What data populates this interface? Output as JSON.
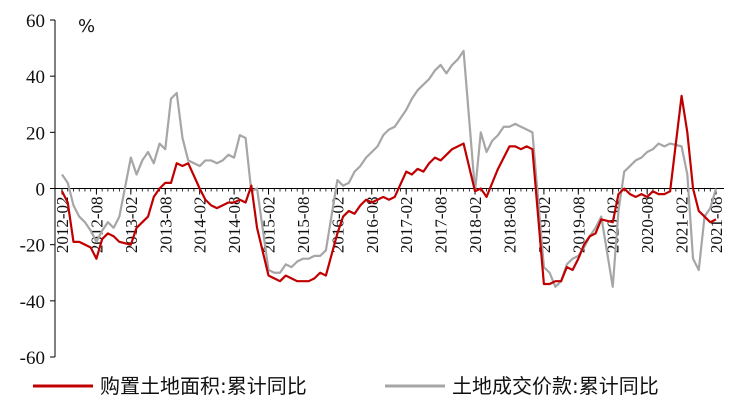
{
  "chart_data": {
    "type": "line",
    "unit_label": "%",
    "ylim": [
      -60,
      60
    ],
    "yticks": [
      -60,
      -40,
      -20,
      0,
      20,
      40,
      60
    ],
    "x_range": [
      "2012-02",
      "2021-08"
    ],
    "x_ticks": [
      "2012-02",
      "2012-08",
      "2013-02",
      "2013-08",
      "2014-02",
      "2014-08",
      "2015-02",
      "2015-08",
      "2016-02",
      "2016-08",
      "2017-02",
      "2017-08",
      "2018-02",
      "2018-08",
      "2019-02",
      "2019-08",
      "2020-02",
      "2020-08",
      "2021-02",
      "2021-08"
    ],
    "grid": false,
    "legend_position": "bottom",
    "series": [
      {
        "name": "购置土地面积:累计同比",
        "color": "#C00000",
        "points": [
          [
            "2012-02",
            -1
          ],
          [
            "2012-03",
            -5
          ],
          [
            "2012-04",
            -19
          ],
          [
            "2012-05",
            -19
          ],
          [
            "2012-06",
            -20
          ],
          [
            "2012-07",
            -21
          ],
          [
            "2012-08",
            -25
          ],
          [
            "2012-09",
            -18
          ],
          [
            "2012-10",
            -16
          ],
          [
            "2012-11",
            -17
          ],
          [
            "2012-12",
            -19
          ],
          [
            "2013-02",
            -20
          ],
          [
            "2013-03",
            -14
          ],
          [
            "2013-04",
            -12
          ],
          [
            "2013-05",
            -10
          ],
          [
            "2013-06",
            -3
          ],
          [
            "2013-07",
            0
          ],
          [
            "2013-08",
            2
          ],
          [
            "2013-09",
            2
          ],
          [
            "2013-10",
            9
          ],
          [
            "2013-11",
            8
          ],
          [
            "2013-12",
            9
          ],
          [
            "2014-02",
            0
          ],
          [
            "2014-03",
            -4
          ],
          [
            "2014-04",
            -6
          ],
          [
            "2014-05",
            -7
          ],
          [
            "2014-06",
            -6
          ],
          [
            "2014-07",
            -5
          ],
          [
            "2014-08",
            -5
          ],
          [
            "2014-09",
            -4
          ],
          [
            "2014-10",
            -5
          ],
          [
            "2014-11",
            1
          ],
          [
            "2014-12",
            -14
          ],
          [
            "2015-02",
            -31
          ],
          [
            "2015-03",
            -32
          ],
          [
            "2015-04",
            -33
          ],
          [
            "2015-05",
            -31
          ],
          [
            "2015-06",
            -32
          ],
          [
            "2015-07",
            -33
          ],
          [
            "2015-08",
            -33
          ],
          [
            "2015-09",
            -33
          ],
          [
            "2015-10",
            -32
          ],
          [
            "2015-11",
            -30
          ],
          [
            "2015-12",
            -31
          ],
          [
            "2016-02",
            -16
          ],
          [
            "2016-03",
            -10
          ],
          [
            "2016-04",
            -8
          ],
          [
            "2016-05",
            -9
          ],
          [
            "2016-06",
            -6
          ],
          [
            "2016-07",
            -4
          ],
          [
            "2016-08",
            -5
          ],
          [
            "2016-09",
            -4
          ],
          [
            "2016-10",
            -3
          ],
          [
            "2016-11",
            -4
          ],
          [
            "2016-12",
            -3
          ],
          [
            "2017-02",
            6
          ],
          [
            "2017-03",
            5
          ],
          [
            "2017-04",
            7
          ],
          [
            "2017-05",
            6
          ],
          [
            "2017-06",
            9
          ],
          [
            "2017-07",
            11
          ],
          [
            "2017-08",
            10
          ],
          [
            "2017-09",
            12
          ],
          [
            "2017-10",
            14
          ],
          [
            "2017-11",
            15
          ],
          [
            "2017-12",
            16
          ],
          [
            "2018-02",
            -1
          ],
          [
            "2018-03",
            0
          ],
          [
            "2018-04",
            -3
          ],
          [
            "2018-05",
            2
          ],
          [
            "2018-06",
            7
          ],
          [
            "2018-07",
            11
          ],
          [
            "2018-08",
            15
          ],
          [
            "2018-09",
            15
          ],
          [
            "2018-10",
            14
          ],
          [
            "2018-11",
            15
          ],
          [
            "2018-12",
            14
          ],
          [
            "2019-02",
            -34
          ],
          [
            "2019-03",
            -34
          ],
          [
            "2019-04",
            -33
          ],
          [
            "2019-05",
            -33
          ],
          [
            "2019-06",
            -28
          ],
          [
            "2019-07",
            -29
          ],
          [
            "2019-08",
            -25
          ],
          [
            "2019-09",
            -20
          ],
          [
            "2019-10",
            -17
          ],
          [
            "2019-11",
            -16
          ],
          [
            "2019-12",
            -11
          ],
          [
            "2020-02",
            -12
          ],
          [
            "2020-03",
            -2
          ],
          [
            "2020-04",
            0
          ],
          [
            "2020-05",
            -2
          ],
          [
            "2020-06",
            -3
          ],
          [
            "2020-07",
            -2
          ],
          [
            "2020-08",
            -3
          ],
          [
            "2020-09",
            -1
          ],
          [
            "2020-10",
            -2
          ],
          [
            "2020-11",
            -2
          ],
          [
            "2020-12",
            -1
          ],
          [
            "2021-02",
            33
          ],
          [
            "2021-03",
            20
          ],
          [
            "2021-04",
            0
          ],
          [
            "2021-05",
            -8
          ],
          [
            "2021-06",
            -10
          ],
          [
            "2021-07",
            -12
          ],
          [
            "2021-08",
            -11
          ]
        ]
      },
      {
        "name": "土地成交价款:累计同比",
        "color": "#A6A6A6",
        "points": [
          [
            "2012-02",
            5
          ],
          [
            "2012-03",
            2
          ],
          [
            "2012-04",
            -6
          ],
          [
            "2012-05",
            -10
          ],
          [
            "2012-06",
            -12
          ],
          [
            "2012-07",
            -15
          ],
          [
            "2012-08",
            -19
          ],
          [
            "2012-09",
            -15
          ],
          [
            "2012-10",
            -12
          ],
          [
            "2012-11",
            -14
          ],
          [
            "2012-12",
            -10
          ],
          [
            "2013-02",
            11
          ],
          [
            "2013-03",
            5
          ],
          [
            "2013-04",
            10
          ],
          [
            "2013-05",
            13
          ],
          [
            "2013-06",
            9
          ],
          [
            "2013-07",
            16
          ],
          [
            "2013-08",
            14
          ],
          [
            "2013-09",
            32
          ],
          [
            "2013-10",
            34
          ],
          [
            "2013-11",
            18
          ],
          [
            "2013-12",
            10
          ],
          [
            "2014-02",
            8
          ],
          [
            "2014-03",
            10
          ],
          [
            "2014-04",
            10
          ],
          [
            "2014-05",
            9
          ],
          [
            "2014-06",
            10
          ],
          [
            "2014-07",
            12
          ],
          [
            "2014-08",
            11
          ],
          [
            "2014-09",
            19
          ],
          [
            "2014-10",
            18
          ],
          [
            "2014-11",
            -1
          ],
          [
            "2014-12",
            0
          ],
          [
            "2015-02",
            -29
          ],
          [
            "2015-03",
            -30
          ],
          [
            "2015-04",
            -30
          ],
          [
            "2015-05",
            -27
          ],
          [
            "2015-06",
            -28
          ],
          [
            "2015-07",
            -26
          ],
          [
            "2015-08",
            -25
          ],
          [
            "2015-09",
            -25
          ],
          [
            "2015-10",
            -24
          ],
          [
            "2015-11",
            -24
          ],
          [
            "2015-12",
            -22
          ],
          [
            "2016-02",
            3
          ],
          [
            "2016-03",
            1
          ],
          [
            "2016-04",
            2
          ],
          [
            "2016-05",
            6
          ],
          [
            "2016-06",
            8
          ],
          [
            "2016-07",
            11
          ],
          [
            "2016-08",
            13
          ],
          [
            "2016-09",
            15
          ],
          [
            "2016-10",
            19
          ],
          [
            "2016-11",
            21
          ],
          [
            "2016-12",
            22
          ],
          [
            "2017-02",
            28
          ],
          [
            "2017-03",
            32
          ],
          [
            "2017-04",
            35
          ],
          [
            "2017-05",
            37
          ],
          [
            "2017-06",
            39
          ],
          [
            "2017-07",
            42
          ],
          [
            "2017-08",
            44
          ],
          [
            "2017-09",
            41
          ],
          [
            "2017-10",
            44
          ],
          [
            "2017-11",
            46
          ],
          [
            "2017-12",
            49
          ],
          [
            "2018-02",
            -1
          ],
          [
            "2018-03",
            20
          ],
          [
            "2018-04",
            13
          ],
          [
            "2018-05",
            17
          ],
          [
            "2018-06",
            19
          ],
          [
            "2018-07",
            22
          ],
          [
            "2018-08",
            22
          ],
          [
            "2018-09",
            23
          ],
          [
            "2018-10",
            22
          ],
          [
            "2018-11",
            21
          ],
          [
            "2018-12",
            20
          ],
          [
            "2019-02",
            -28
          ],
          [
            "2019-03",
            -30
          ],
          [
            "2019-04",
            -35
          ],
          [
            "2019-05",
            -33
          ],
          [
            "2019-06",
            -27
          ],
          [
            "2019-07",
            -25
          ],
          [
            "2019-08",
            -24
          ],
          [
            "2019-09",
            -21
          ],
          [
            "2019-10",
            -17
          ],
          [
            "2019-11",
            -14
          ],
          [
            "2019-12",
            -10
          ],
          [
            "2020-02",
            -35
          ],
          [
            "2020-03",
            -8
          ],
          [
            "2020-04",
            6
          ],
          [
            "2020-05",
            8
          ],
          [
            "2020-06",
            10
          ],
          [
            "2020-07",
            11
          ],
          [
            "2020-08",
            13
          ],
          [
            "2020-09",
            14
          ],
          [
            "2020-10",
            16
          ],
          [
            "2020-11",
            15
          ],
          [
            "2020-12",
            16
          ],
          [
            "2021-02",
            15
          ],
          [
            "2021-03",
            5
          ],
          [
            "2021-04",
            -25
          ],
          [
            "2021-05",
            -29
          ],
          [
            "2021-06",
            -10
          ],
          [
            "2021-07",
            -7
          ],
          [
            "2021-08",
            0
          ]
        ]
      }
    ]
  }
}
